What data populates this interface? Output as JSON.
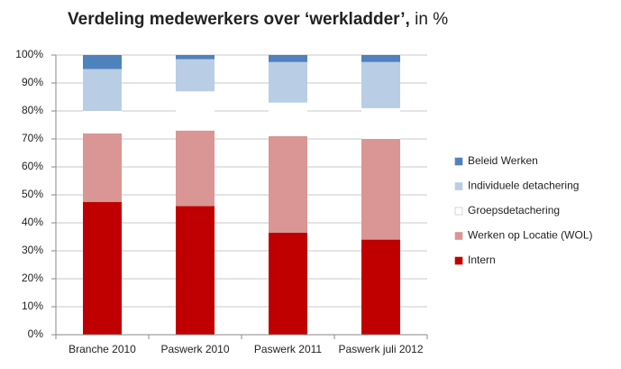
{
  "chart_data": {
    "type": "stacked_bar",
    "title": "Verdeling medewerkers over ‘werkladder’,",
    "title_suffix": "in %",
    "categories": [
      "Branche 2010",
      "Paswerk 2010",
      "Paswerk 2011",
      "Paswerk juli 2012"
    ],
    "series": [
      {
        "name": "Intern",
        "color": "#c00000",
        "values": [
          47.5,
          46,
          36.5,
          34
        ]
      },
      {
        "name": "Werken op Locatie (WOL)",
        "color": "#d99694",
        "values": [
          24.5,
          27,
          34.5,
          36
        ]
      },
      {
        "name": "Groepsdetachering",
        "color": "#ffffff",
        "values": [
          8,
          14,
          12,
          11
        ]
      },
      {
        "name": "Individuele detachering",
        "color": "#b9cde5",
        "values": [
          15,
          11.5,
          14.5,
          16.5
        ]
      },
      {
        "name": "Beleid Werken",
        "color": "#4f81bd",
        "values": [
          5,
          1.5,
          2.5,
          2.5
        ]
      }
    ],
    "ylim": [
      0,
      100
    ],
    "yticks": [
      {
        "value": 0,
        "label": "0%"
      },
      {
        "value": 10,
        "label": "10%"
      },
      {
        "value": 20,
        "label": "20%"
      },
      {
        "value": 30,
        "label": "30%"
      },
      {
        "value": 40,
        "label": "40%"
      },
      {
        "value": 50,
        "label": "50%"
      },
      {
        "value": 60,
        "label": "60%"
      },
      {
        "value": 70,
        "label": "70%"
      },
      {
        "value": 80,
        "label": "80%"
      },
      {
        "value": 90,
        "label": "90%"
      },
      {
        "value": 100,
        "label": "100%"
      }
    ],
    "grid": true
  }
}
